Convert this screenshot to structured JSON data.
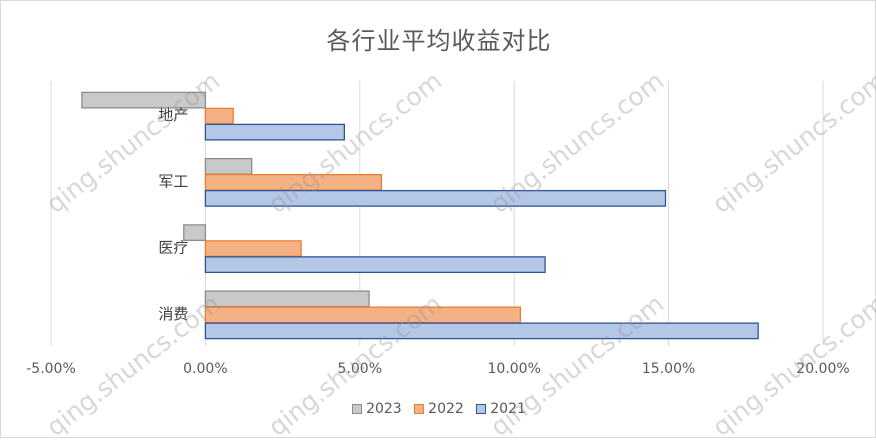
{
  "chart_data": {
    "type": "bar",
    "orientation": "horizontal",
    "title": "各行业平均收益对比",
    "categories": [
      "消费",
      "医疗",
      "军工",
      "地产"
    ],
    "series": [
      {
        "name": "2023",
        "color": "#c9c9c9",
        "stroke": "#8c8c8c",
        "values": [
          5.3,
          -0.7,
          1.5,
          -4.0
        ]
      },
      {
        "name": "2022",
        "color": "#f4b183",
        "stroke": "#ed7d31",
        "values": [
          10.2,
          3.1,
          5.7,
          0.9
        ]
      },
      {
        "name": "2021",
        "color": "#b4c7e7",
        "stroke": "#2f5597",
        "values": [
          17.9,
          11.0,
          14.9,
          4.5
        ]
      }
    ],
    "xlim": [
      -5,
      20
    ],
    "xticks": [
      "-5.00%",
      "0.00%",
      "5.00%",
      "10.00%",
      "15.00%",
      "20.00%"
    ],
    "xtick_values": [
      -5,
      0,
      5,
      10,
      15,
      20
    ],
    "grid": true,
    "legend": "bottom"
  },
  "watermark": "qing.shuncs.com"
}
